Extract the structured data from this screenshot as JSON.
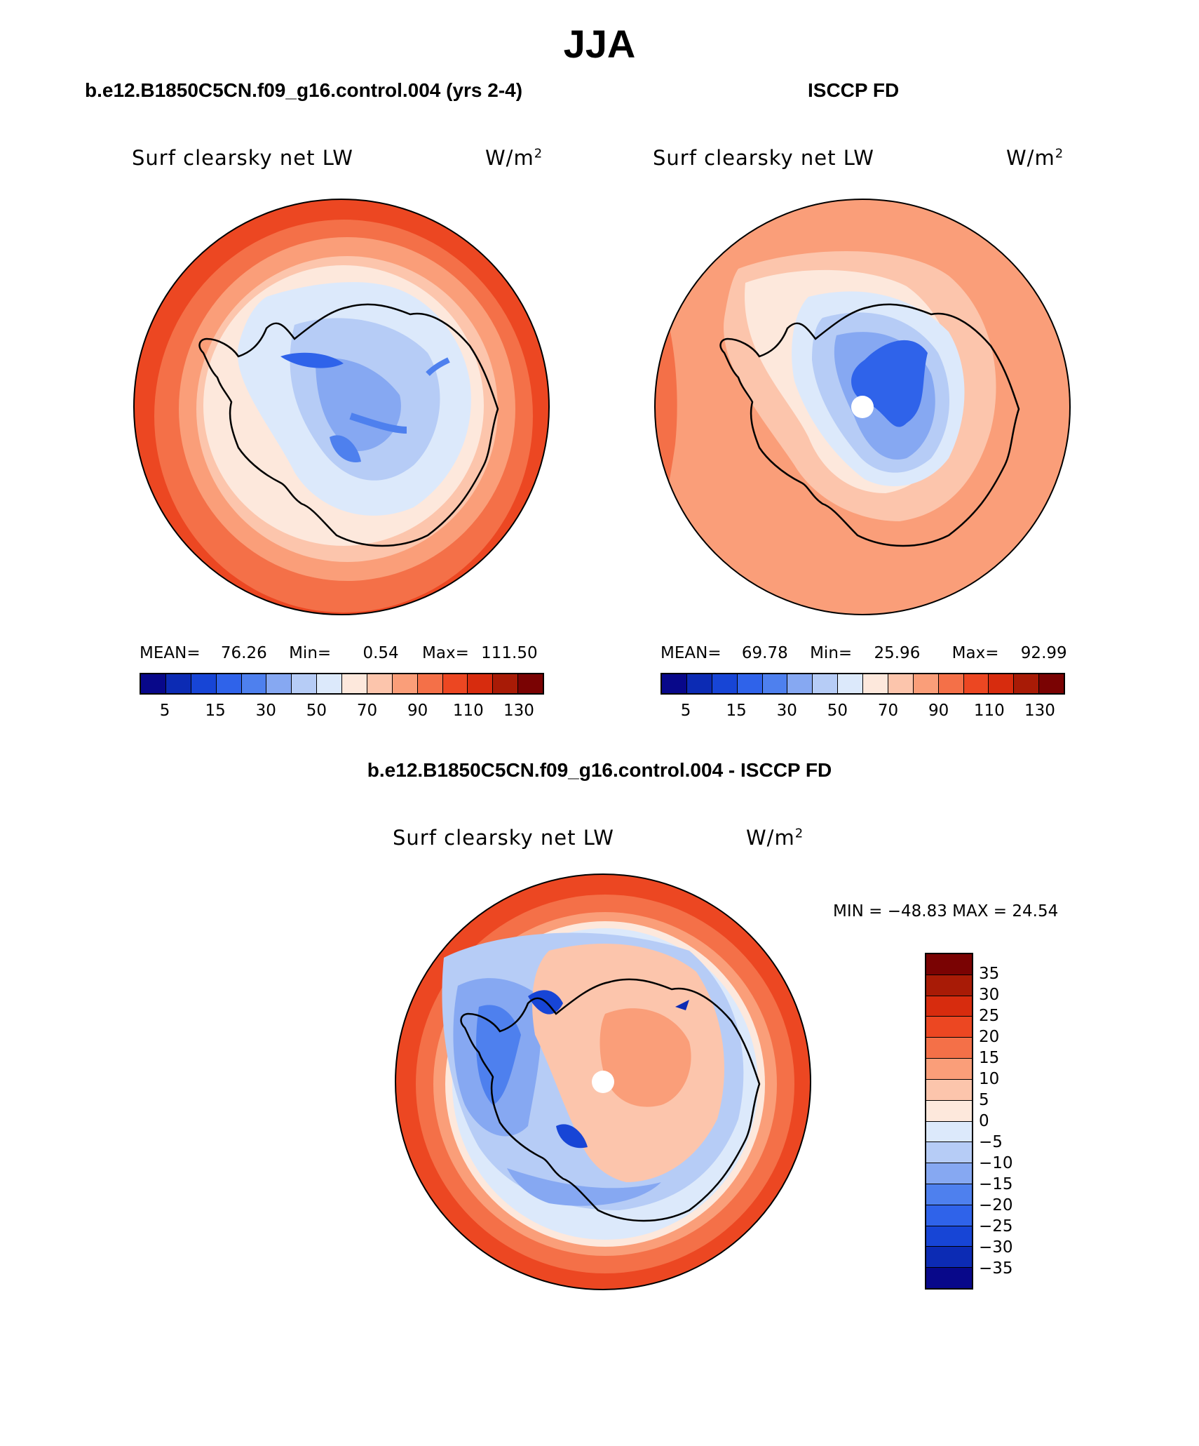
{
  "title": "JJA",
  "panels": [
    {
      "case_title": "b.e12.B1850C5CN.f09_g16.control.004 (yrs 2-4)",
      "label": "Surf clearsky net LW",
      "units_text": "W/m",
      "units_exp": "2",
      "stats": {
        "mean_label": "MEAN=",
        "mean": "76.26",
        "min_label": "Min=",
        "min": "0.54",
        "max_label": "Max=",
        "max": "111.50"
      }
    },
    {
      "case_title": "ISCCP FD",
      "label": "Surf clearsky net LW",
      "units_text": "W/m",
      "units_exp": "2",
      "stats": {
        "mean_label": "MEAN=",
        "mean": "69.78",
        "min_label": "Min=",
        "min": "25.96",
        "max_label": "Max=",
        "max": "92.99"
      }
    }
  ],
  "abs_colorbar": {
    "colors": [
      "#08088a",
      "#0c2bb4",
      "#1745d6",
      "#2f63ea",
      "#4e80ee",
      "#86a8f2",
      "#b6ccf6",
      "#dce9fb",
      "#fde8dc",
      "#fcc5ac",
      "#fa9e79",
      "#f47048",
      "#ec4722",
      "#d72c0e",
      "#a81b06",
      "#7a0303"
    ],
    "ticks": [
      "5",
      "15",
      "30",
      "50",
      "70",
      "90",
      "110",
      "130"
    ]
  },
  "diff": {
    "title": "b.e12.B1850C5CN.f09_g16.control.004 - ISCCP FD",
    "label": "Surf clearsky net LW",
    "units_text": "W/m",
    "units_exp": "2",
    "minmax": "MIN = −48.83 MAX =   24.54",
    "colorbar": {
      "colors_top_to_bottom": [
        "#7a0303",
        "#a81b06",
        "#d72c0e",
        "#ec4722",
        "#f47048",
        "#fa9e79",
        "#fcc5ac",
        "#fde8dc",
        "#dce9fb",
        "#b6ccf6",
        "#86a8f2",
        "#4e80ee",
        "#2f63ea",
        "#1745d6",
        "#0c2bb4",
        "#08088a"
      ],
      "ticks": [
        "35",
        "30",
        "25",
        "20",
        "15",
        "10",
        "5",
        "0",
        "−5",
        "−10",
        "−15",
        "−20",
        "−25",
        "−30",
        "−35"
      ]
    }
  }
}
